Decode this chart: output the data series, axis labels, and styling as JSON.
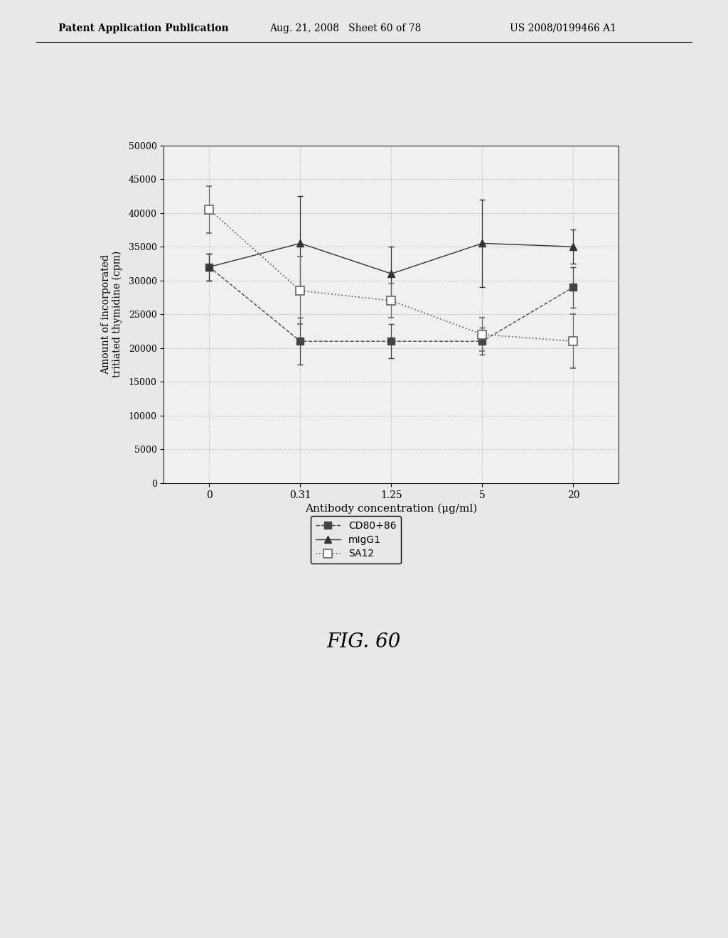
{
  "x_positions": [
    0,
    1,
    2,
    3,
    4
  ],
  "x_labels": [
    "0",
    "0.31",
    "1.25",
    "5",
    "20"
  ],
  "xlabel": "Antibody concentration (μg/ml)",
  "ylabel": "Amount of incorporated\ntritiated thymidine (cpm)",
  "ylim": [
    0,
    50000
  ],
  "yticks": [
    0,
    5000,
    10000,
    15000,
    20000,
    25000,
    30000,
    35000,
    40000,
    45000,
    50000
  ],
  "series": {
    "CD80+86": {
      "y": [
        32000,
        21000,
        21000,
        21000,
        29000
      ],
      "yerr": [
        2000,
        3500,
        2500,
        2000,
        3000
      ],
      "color": "#444444",
      "marker": "s",
      "linestyle": "--",
      "label": "CD80+86"
    },
    "mIgG1": {
      "y": [
        32000,
        35500,
        31000,
        35500,
        35000
      ],
      "yerr": [
        2000,
        7000,
        4000,
        6500,
        2500
      ],
      "color": "#333333",
      "marker": "^",
      "linestyle": "-",
      "label": "mIgG1"
    },
    "SA12": {
      "y": [
        40500,
        28500,
        27000,
        22000,
        21000
      ],
      "yerr": [
        3500,
        5000,
        2500,
        2500,
        4000
      ],
      "color": "#666666",
      "marker": "s",
      "linestyle": ":",
      "label": "SA12"
    }
  },
  "fig_label": "FIG. 60",
  "header_left": "Patent Application Publication",
  "header_mid": "Aug. 21, 2008   Sheet 60 of 78",
  "header_right": "US 2008/0199466 A1",
  "background_color": "#e8e8e8"
}
